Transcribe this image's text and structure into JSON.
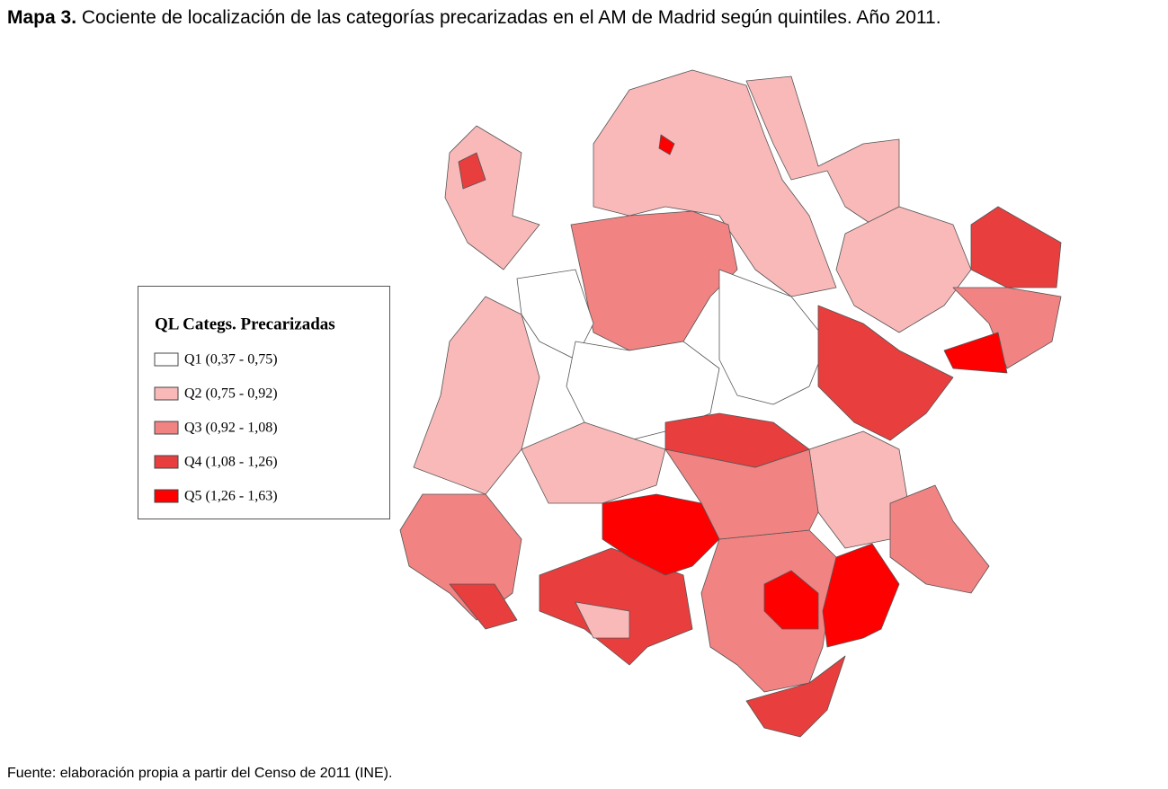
{
  "header": {
    "label": "Mapa 3.",
    "title": "Cociente de localización de las categorías precarizadas en el AM de Madrid según quintiles. Año 2011."
  },
  "legend": {
    "title": "QL Categs. Precarizadas",
    "items": [
      {
        "label": "Q1 (0,37 - 0,75)",
        "color": "#ffffff"
      },
      {
        "label": "Q2 (0,75 - 0,92)",
        "color": "#f9b9b9"
      },
      {
        "label": "Q3 (0,92 - 1,08)",
        "color": "#f18383"
      },
      {
        "label": "Q4 (1,08 - 1,26)",
        "color": "#e83e3e"
      },
      {
        "label": "Q5 (1,26 - 1,63)",
        "color": "#ff0000"
      }
    ]
  },
  "source": "Fuente: elaboración propia a partir del Censo de 2011 (INE)."
}
